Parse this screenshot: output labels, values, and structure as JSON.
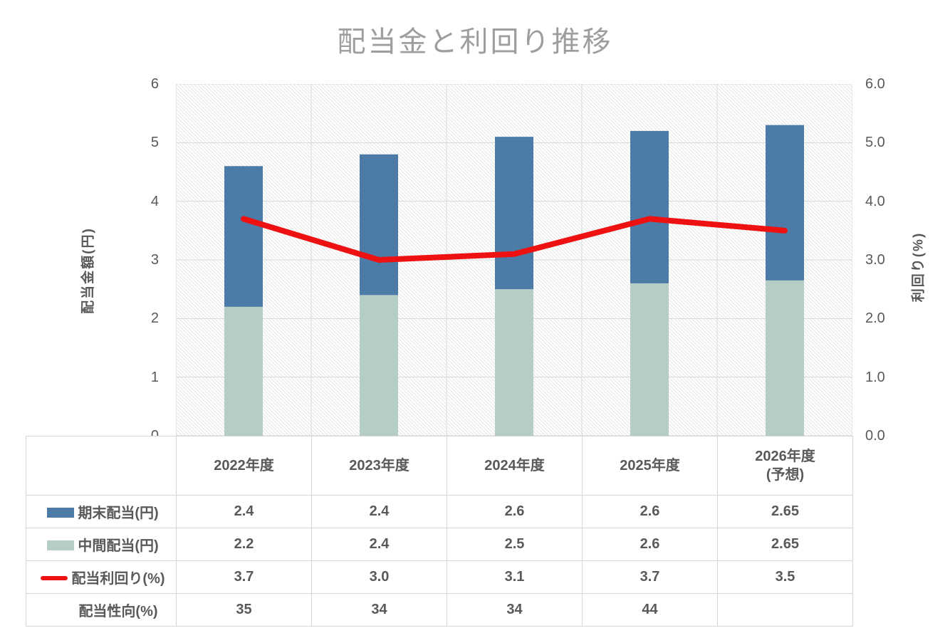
{
  "title": "配当金と利回り推移",
  "left_axis": {
    "title": "配当金額(円)",
    "ticks": [
      "6",
      "5",
      "4",
      "3",
      "2",
      "1",
      "0"
    ]
  },
  "right_axis": {
    "title": "利回り(%)",
    "ticks": [
      "6.0",
      "5.0",
      "4.0",
      "3.0",
      "2.0",
      "1.0",
      "0.0"
    ]
  },
  "chart_data": {
    "type": "bar",
    "subtype": "stacked-bars-with-line-combo",
    "title": "配当金と利回り推移",
    "categories": [
      "2022年度",
      "2023年度",
      "2024年度",
      "2025年度",
      "2026年度\n(予想)"
    ],
    "series": [
      {
        "name": "期末配当(円)",
        "type": "bar",
        "stack": "top",
        "color": "#4d7ba8",
        "values": [
          2.4,
          2.4,
          2.6,
          2.6,
          2.65
        ]
      },
      {
        "name": "中間配当(円)",
        "type": "bar",
        "stack": "bottom",
        "color": "#b5cdc4",
        "values": [
          2.2,
          2.4,
          2.5,
          2.6,
          2.65
        ]
      },
      {
        "name": "配当利回り(%)",
        "type": "line",
        "color": "#ee1111",
        "values": [
          3.7,
          3.0,
          3.1,
          3.7,
          3.5
        ]
      }
    ],
    "left_ylabel": "配当金額(円)",
    "right_ylabel": "利回り(%)",
    "left_ylim": [
      0,
      6
    ],
    "right_ylim": [
      0.0,
      6.0
    ],
    "grid": true,
    "plot_background": "diagonal-hatch-pattern",
    "legend_position": "table-row-headers"
  },
  "table": {
    "rows": [
      {
        "label": "期末配当(円)",
        "swatch": "bar-blue",
        "values": [
          "2.4",
          "2.4",
          "2.6",
          "2.6",
          "2.65"
        ]
      },
      {
        "label": "中間配当(円)",
        "swatch": "bar-green",
        "values": [
          "2.2",
          "2.4",
          "2.5",
          "2.6",
          "2.65"
        ]
      },
      {
        "label": "配当利回り(%)",
        "swatch": "line-red",
        "values": [
          "3.7",
          "3.0",
          "3.1",
          "3.7",
          "3.5"
        ]
      },
      {
        "label": "配当性向(%)",
        "swatch": "none",
        "values": [
          "35",
          "34",
          "34",
          "44",
          ""
        ]
      }
    ]
  },
  "colors": {
    "bar_final": "#4d7ba8",
    "bar_interim": "#b5cdc4",
    "yield_line": "#ee1111",
    "gridline": "#d9d9d9",
    "hatch": "#e5e5e5",
    "axis_text": "#595959",
    "title_text": "#9e9e9e",
    "table_border": "#d6d6d6"
  }
}
